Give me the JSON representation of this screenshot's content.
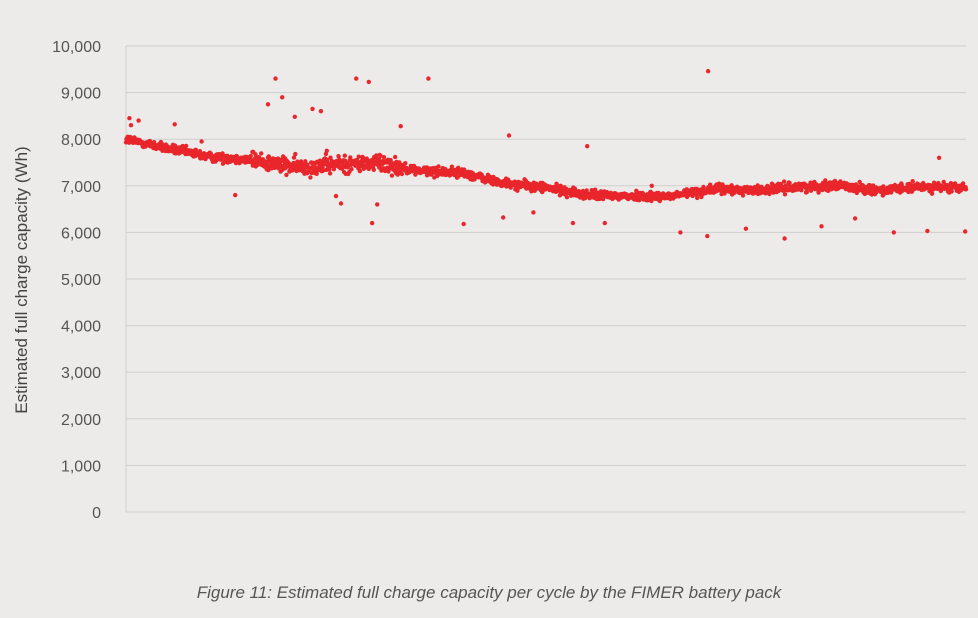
{
  "chart_data": {
    "type": "scatter",
    "title": "",
    "xlabel": "",
    "ylabel": "Estimated full charge capacity (Wh)",
    "ylim": [
      0,
      10000
    ],
    "y_ticks": [
      "0",
      "1,000",
      "2,000",
      "3,000",
      "4,000",
      "5,000",
      "6,000",
      "7,000",
      "8,000",
      "9,000",
      "10,000"
    ],
    "grid": true,
    "x_tick_labels": false,
    "marker_color": "#e8262b",
    "trend": [
      [
        0,
        8000
      ],
      [
        50,
        7800
      ],
      [
        100,
        7620
      ],
      [
        150,
        7560
      ],
      [
        200,
        7400
      ],
      [
        250,
        7450
      ],
      [
        300,
        7500
      ],
      [
        350,
        7320
      ],
      [
        400,
        7280
      ],
      [
        450,
        7050
      ],
      [
        500,
        6960
      ],
      [
        550,
        6800
      ],
      [
        600,
        6780
      ],
      [
        650,
        6780
      ],
      [
        700,
        6930
      ],
      [
        750,
        6900
      ],
      [
        800,
        6980
      ],
      [
        850,
        7000
      ],
      [
        900,
        6900
      ],
      [
        950,
        6980
      ],
      [
        1000,
        6950
      ]
    ],
    "outliers": [
      [
        4,
        8450
      ],
      [
        6,
        8300
      ],
      [
        15,
        8400
      ],
      [
        58,
        8320
      ],
      [
        90,
        7950
      ],
      [
        130,
        6800
      ],
      [
        169,
        8750
      ],
      [
        178,
        9300
      ],
      [
        186,
        8900
      ],
      [
        201,
        8480
      ],
      [
        222,
        8650
      ],
      [
        232,
        8600
      ],
      [
        239,
        7750
      ],
      [
        250,
        6780
      ],
      [
        256,
        6620
      ],
      [
        274,
        9300
      ],
      [
        289,
        9230
      ],
      [
        293,
        6200
      ],
      [
        299,
        6600
      ],
      [
        327,
        8280
      ],
      [
        360,
        9300
      ],
      [
        402,
        6180
      ],
      [
        449,
        6320
      ],
      [
        456,
        8080
      ],
      [
        485,
        6430
      ],
      [
        532,
        6200
      ],
      [
        549,
        7850
      ],
      [
        570,
        6200
      ],
      [
        626,
        7000
      ],
      [
        660,
        6000
      ],
      [
        692,
        5920
      ],
      [
        693,
        9460
      ],
      [
        738,
        6080
      ],
      [
        784,
        5870
      ],
      [
        828,
        6130
      ],
      [
        868,
        6300
      ],
      [
        914,
        6000
      ],
      [
        954,
        6030
      ],
      [
        968,
        7600
      ],
      [
        999,
        6020
      ]
    ],
    "caption": "Figure 11: Estimated full charge capacity per cycle by the FIMER battery pack"
  }
}
